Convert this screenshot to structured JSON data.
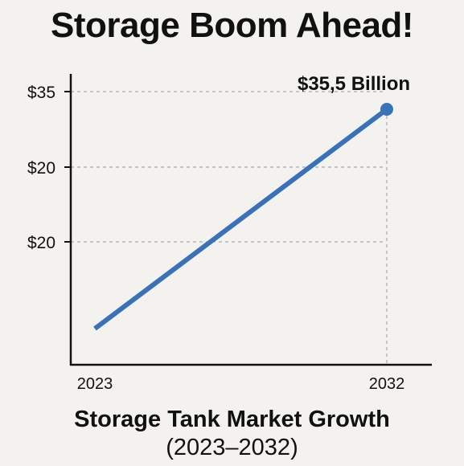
{
  "title": "Storage Boom Ahead!",
  "caption": {
    "line1": "Storage Tank Market Growth",
    "line2": "(2023–2032)"
  },
  "colors": {
    "background": "#f3f2ee",
    "line": "#3a72b8",
    "axis": "#111111",
    "grid": "#9a9a9a"
  },
  "chart_data": {
    "type": "line",
    "title": "Storage Boom Ahead!",
    "xlabel": "",
    "ylabel": "",
    "x": [
      2023,
      2032
    ],
    "x_tick_labels": [
      "2023",
      "2032"
    ],
    "y_tick_labels": [
      "$35",
      "$20",
      "$20"
    ],
    "grid": "horizontal dashed lines at y ticks",
    "annotation": {
      "text": "$35,5 Billion",
      "x": 2032,
      "y": 35.5
    },
    "series": [
      {
        "x": [
          2023,
          2032
        ],
        "values": [
          9,
          35.5
        ]
      }
    ]
  }
}
